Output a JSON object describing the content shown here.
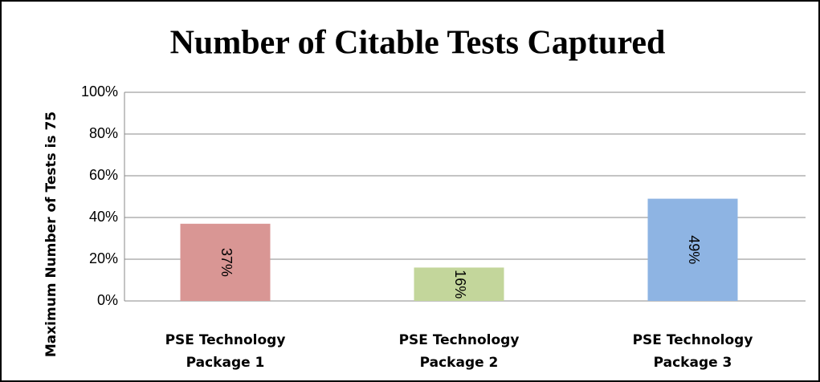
{
  "chart_data": {
    "type": "bar",
    "title": "Number of Citable Tests Captured",
    "y_axis_label": "Maximum Number of Tests is 75",
    "categories": [
      "PSE Technology Package 1",
      "PSE Technology Package 2",
      "PSE Technology Package 3"
    ],
    "values": [
      37,
      16,
      49
    ],
    "value_labels": [
      "37%",
      "16%",
      "49%"
    ],
    "colors": [
      "#d99694",
      "#c3d69b",
      "#8eb4e3"
    ],
    "ylim": [
      0,
      100
    ],
    "yticks": [
      {
        "value": 0,
        "label": "0%"
      },
      {
        "value": 20,
        "label": "20%"
      },
      {
        "value": 40,
        "label": "40%"
      },
      {
        "value": 60,
        "label": "60%"
      },
      {
        "value": 80,
        "label": "80%"
      },
      {
        "value": 100,
        "label": "100%"
      }
    ],
    "grid": true
  }
}
